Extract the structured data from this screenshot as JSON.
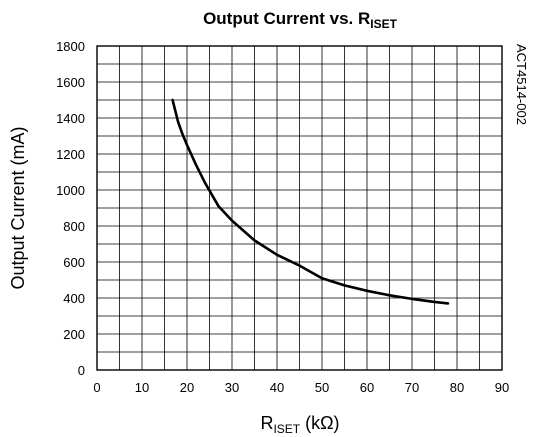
{
  "chart_data": {
    "type": "line",
    "title": "Output Current vs. R",
    "title_subscript": "ISET",
    "xlabel_main": "R",
    "xlabel_subscript": "ISET",
    "xlabel_unit": " (kΩ)",
    "ylabel": "Output Current (mA)",
    "figure_code": "ACT4514-002",
    "xlim": [
      0,
      90
    ],
    "ylim": [
      0,
      1800
    ],
    "x_ticks": [
      "0",
      "10",
      "20",
      "30",
      "40",
      "50",
      "60",
      "70",
      "80",
      "90"
    ],
    "y_ticks": [
      "0",
      "200",
      "400",
      "600",
      "800",
      "1000",
      "1200",
      "1400",
      "1600",
      "1800"
    ],
    "grid": true,
    "series": [
      {
        "color": "#000000",
        "x": [
          16.8,
          18,
          19,
          20,
          22,
          24,
          27,
          30,
          35,
          40,
          45,
          50,
          55,
          60,
          65,
          70,
          75,
          78
        ],
        "y": [
          1500,
          1380,
          1310,
          1250,
          1140,
          1040,
          910,
          830,
          720,
          640,
          580,
          510,
          470,
          440,
          415,
          395,
          378,
          370
        ]
      }
    ]
  }
}
